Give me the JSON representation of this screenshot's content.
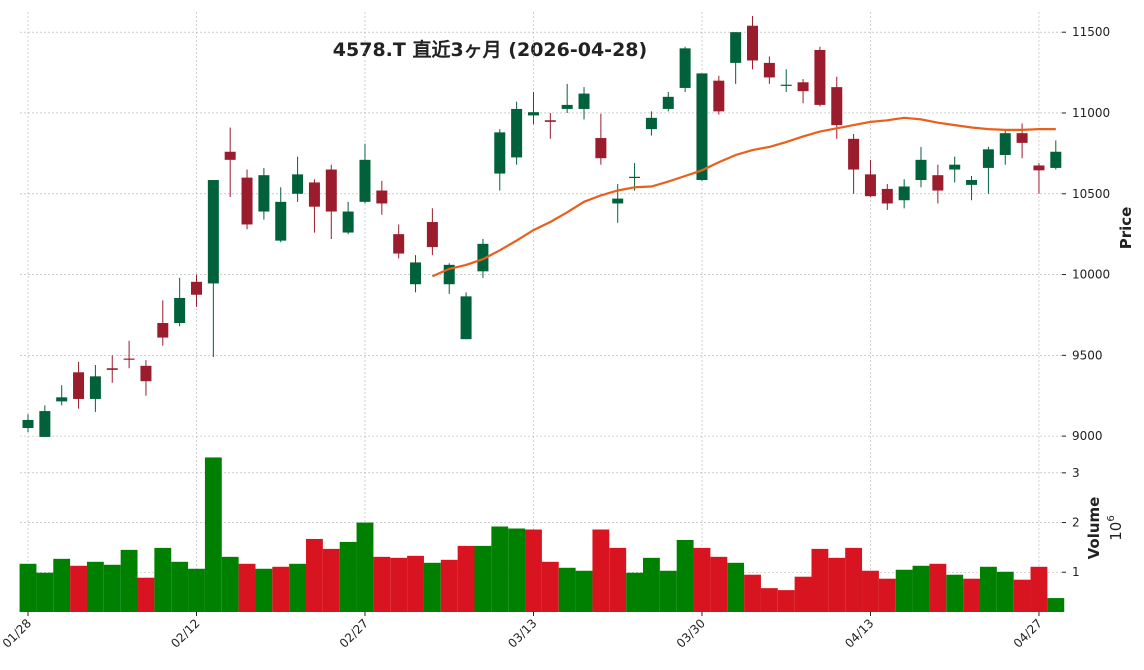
{
  "chart_data": {
    "type": "candlestick",
    "title": "4578.T  直近3ヶ月  (2026-04-28)",
    "y_label": "Price",
    "categories": [
      "01/28",
      null,
      null,
      null,
      null,
      null,
      null,
      null,
      null,
      null,
      "02/12",
      null,
      null,
      null,
      null,
      null,
      null,
      null,
      null,
      null,
      "02/27",
      null,
      null,
      null,
      null,
      null,
      null,
      null,
      null,
      null,
      "03/13",
      null,
      null,
      null,
      null,
      null,
      null,
      null,
      null,
      null,
      "03/30",
      null,
      null,
      null,
      null,
      null,
      null,
      null,
      null,
      null,
      "04/13",
      null,
      null,
      null,
      null,
      null,
      null,
      null,
      null,
      null,
      "04/27",
      null
    ],
    "open": [
      9050,
      8995,
      9215,
      9395,
      9230,
      9420,
      9480,
      9435,
      9700,
      9700,
      9955,
      9945,
      10760,
      10600,
      10390,
      10210,
      10500,
      10570,
      10650,
      10260,
      10450,
      10520,
      10250,
      9940,
      10325,
      9940,
      9600,
      10020,
      10625,
      10725,
      10985,
      10955,
      11025,
      11025,
      10845,
      10440,
      10600,
      10900,
      11025,
      11155,
      10585,
      11200,
      11310,
      11540,
      11310,
      11170,
      11190,
      11390,
      11160,
      10840,
      10620,
      10530,
      10460,
      10585,
      10615,
      10650,
      10555,
      10660,
      10740,
      10875,
      10675,
      10660
    ],
    "high": [
      9135,
      9190,
      9315,
      9460,
      9440,
      9500,
      9590,
      9470,
      9840,
      9980,
      10000,
      10585,
      10910,
      10650,
      10660,
      10540,
      10730,
      10590,
      10680,
      10450,
      10810,
      10580,
      10310,
      10120,
      10410,
      10070,
      9890,
      10220,
      10900,
      11070,
      11130,
      11000,
      11180,
      11160,
      10995,
      10560,
      10690,
      11010,
      11130,
      11410,
      11245,
      11230,
      11500,
      11600,
      11350,
      11270,
      11210,
      11410,
      11225,
      10870,
      10710,
      10560,
      10590,
      10790,
      10680,
      10730,
      10610,
      10790,
      10890,
      10935,
      10690,
      10830
    ],
    "low": [
      9025,
      8995,
      9190,
      9170,
      9150,
      9330,
      9420,
      9250,
      9560,
      9680,
      9800,
      9490,
      10480,
      10280,
      10340,
      10200,
      10450,
      10260,
      10220,
      10250,
      10440,
      10370,
      10100,
      9890,
      10120,
      9880,
      9600,
      9980,
      10520,
      10680,
      10930,
      10840,
      11000,
      10960,
      10680,
      10320,
      10520,
      10860,
      11010,
      11130,
      10580,
      10990,
      11180,
      11270,
      11180,
      11130,
      11060,
      11040,
      10840,
      10500,
      10480,
      10400,
      10410,
      10540,
      10440,
      10570,
      10460,
      10500,
      10680,
      10720,
      10500,
      10650
    ],
    "close": [
      9100,
      9155,
      9240,
      9230,
      9370,
      9410,
      9475,
      9340,
      9610,
      9855,
      9875,
      10585,
      10710,
      10310,
      10615,
      10450,
      10620,
      10420,
      10390,
      10390,
      10710,
      10440,
      10130,
      10075,
      10170,
      10060,
      9865,
      10190,
      10880,
      11025,
      11005,
      10945,
      11050,
      11120,
      10720,
      10470,
      10605,
      10970,
      11100,
      11400,
      11245,
      11010,
      11500,
      11325,
      11220,
      11175,
      11135,
      11050,
      10925,
      10650,
      10485,
      10440,
      10545,
      10710,
      10520,
      10680,
      10585,
      10775,
      10875,
      10815,
      10645,
      10760
    ],
    "up_color": "#00613b",
    "down_color": "#9b1c2c",
    "ylim": [
      8945,
      11625
    ],
    "yticks": [
      9000,
      9500,
      10000,
      10500,
      11000,
      11500
    ],
    "grid": true,
    "ma": {
      "color": "#e8601c",
      "values": [
        null,
        null,
        null,
        null,
        null,
        null,
        null,
        null,
        null,
        null,
        null,
        null,
        null,
        null,
        null,
        null,
        null,
        null,
        null,
        null,
        null,
        null,
        null,
        null,
        9990,
        10035,
        10060,
        10095,
        10150,
        10210,
        10275,
        10325,
        10385,
        10450,
        10490,
        10520,
        10540,
        10545,
        10575,
        10610,
        10645,
        10695,
        10740,
        10770,
        10790,
        10820,
        10855,
        10885,
        10905,
        10925,
        10945,
        10955,
        10970,
        10960,
        10940,
        10925,
        10910,
        10900,
        10895,
        10895,
        10900,
        10900
      ]
    },
    "volume": {
      "label": "Volume",
      "offset": {
        "base": "10",
        "exponent": "6"
      },
      "values": [
        1.17,
        0.99,
        1.27,
        1.13,
        1.21,
        1.15,
        1.45,
        0.89,
        1.49,
        1.21,
        1.07,
        3.31,
        1.31,
        1.17,
        1.07,
        1.11,
        1.17,
        1.67,
        1.47,
        1.61,
        2.0,
        1.31,
        1.29,
        1.33,
        1.19,
        1.25,
        1.53,
        1.53,
        1.92,
        1.88,
        1.86,
        1.21,
        1.09,
        1.03,
        1.86,
        1.49,
        0.99,
        1.29,
        1.03,
        1.65,
        1.49,
        1.31,
        1.19,
        0.95,
        0.68,
        0.64,
        0.91,
        1.47,
        1.29,
        1.49,
        1.03,
        0.87,
        1.05,
        1.13,
        1.17,
        0.95,
        0.87,
        1.11,
        1.01,
        0.85,
        1.11,
        0.48
      ],
      "up_color": "#008000",
      "down_color": "#d7141f",
      "ylim": [
        0.2,
        3.5
      ],
      "yticks": [
        1,
        2,
        3
      ]
    }
  }
}
